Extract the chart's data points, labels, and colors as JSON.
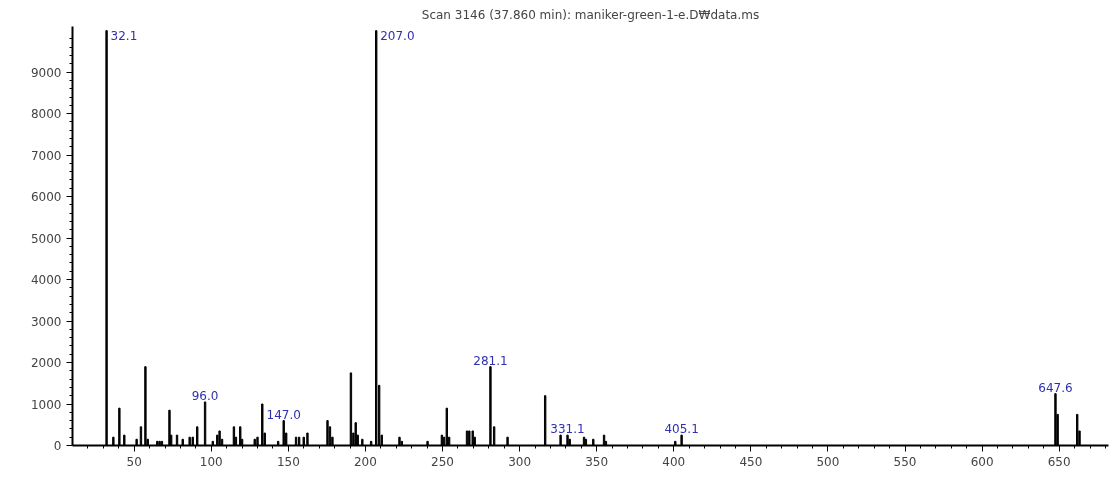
{
  "chart_data": {
    "type": "bar",
    "title": "Scan 3146 (37.860 min): maniker-green-1-e.D₩data.ms",
    "x": [
      32.1,
      36.5,
      40.4,
      43.6,
      51.6,
      54.4,
      57.3,
      58.8,
      65,
      66.5,
      68,
      72.9,
      74,
      77.8,
      81.5,
      86,
      88,
      90.9,
      96.0,
      101,
      103.9,
      105.4,
      107,
      114.7,
      116,
      118.8,
      120,
      128.2,
      130,
      133.1,
      134.7,
      143.4,
      147.0,
      148.6,
      155,
      157,
      160,
      162.4,
      175.4,
      177,
      178.6,
      190.6,
      192.2,
      193.7,
      195,
      198,
      203.7,
      207.0,
      208.9,
      210.6,
      222.1,
      223.6,
      240.3,
      249.6,
      251,
      252.8,
      254.3,
      265.9,
      267.4,
      269.6,
      270.9,
      281.1,
      283.5,
      292.2,
      316.6,
      326.6,
      331.1,
      332.5,
      341.8,
      343,
      347.8,
      354.8,
      356,
      401,
      405.1,
      647.6,
      649,
      661.7,
      663.2
    ],
    "values": [
      10000,
      200,
      900,
      250,
      150,
      450,
      1900,
      150,
      100,
      100,
      100,
      850,
      250,
      250,
      150,
      200,
      200,
      450,
      1050,
      100,
      250,
      350,
      150,
      450,
      200,
      450,
      150,
      150,
      200,
      1000,
      300,
      100,
      600,
      300,
      200,
      200,
      200,
      300,
      600,
      450,
      200,
      1750,
      300,
      550,
      250,
      150,
      100,
      10000,
      1450,
      250,
      200,
      100,
      100,
      250,
      200,
      900,
      200,
      350,
      350,
      350,
      200,
      1900,
      450,
      200,
      1200,
      250,
      250,
      150,
      200,
      150,
      150,
      250,
      100,
      100,
      250,
      1250,
      750,
      750,
      350
    ],
    "color": "#000000",
    "xlim": [
      10,
      682
    ],
    "ylim": [
      0,
      10100
    ],
    "xticks": [
      {
        "value": 20,
        "label": null
      },
      {
        "value": 30,
        "label": null
      },
      {
        "value": 40,
        "label": null
      },
      50,
      {
        "value": 60,
        "label": null
      },
      {
        "value": 70,
        "label": null
      },
      {
        "value": 80,
        "label": null
      },
      {
        "value": 90,
        "label": null
      },
      100,
      {
        "value": 110,
        "label": null
      },
      {
        "value": 120,
        "label": null
      },
      {
        "value": 130,
        "label": null
      },
      {
        "value": 140,
        "label": null
      },
      150,
      {
        "value": 160,
        "label": null
      },
      {
        "value": 170,
        "label": null
      },
      {
        "value": 180,
        "label": null
      },
      {
        "value": 190,
        "label": null
      },
      200,
      {
        "value": 210,
        "label": null
      },
      {
        "value": 220,
        "label": null
      },
      {
        "value": 230,
        "label": null
      },
      {
        "value": 240,
        "label": null
      },
      250,
      {
        "value": 260,
        "label": null
      },
      {
        "value": 270,
        "label": null
      },
      {
        "value": 280,
        "label": null
      },
      {
        "value": 290,
        "label": null
      },
      300,
      {
        "value": 310,
        "label": null
      },
      {
        "value": 320,
        "label": null
      },
      {
        "value": 330,
        "label": null
      },
      {
        "value": 340,
        "label": null
      },
      350,
      {
        "value": 360,
        "label": null
      },
      {
        "value": 370,
        "label": null
      },
      {
        "value": 380,
        "label": null
      },
      {
        "value": 390,
        "label": null
      },
      400,
      {
        "value": 410,
        "label": null
      },
      {
        "value": 420,
        "label": null
      },
      {
        "value": 430,
        "label": null
      },
      {
        "value": 440,
        "label": null
      },
      450,
      {
        "value": 460,
        "label": null
      },
      {
        "value": 470,
        "label": null
      },
      {
        "value": 480,
        "label": null
      },
      {
        "value": 490,
        "label": null
      },
      500,
      {
        "value": 510,
        "label": null
      },
      {
        "value": 520,
        "label": null
      },
      {
        "value": 530,
        "label": null
      },
      {
        "value": 540,
        "label": null
      },
      550,
      {
        "value": 560,
        "label": null
      },
      {
        "value": 570,
        "label": null
      },
      {
        "value": 580,
        "label": null
      },
      {
        "value": 590,
        "label": null
      },
      600,
      {
        "value": 610,
        "label": null
      },
      {
        "value": 620,
        "label": null
      },
      {
        "value": 630,
        "label": null
      },
      {
        "value": 640,
        "label": null
      },
      650,
      {
        "value": 660,
        "label": null
      },
      {
        "value": 670,
        "label": null
      },
      {
        "value": 680,
        "label": null
      }
    ],
    "yticks": [
      0,
      {
        "value": 200,
        "label": null
      },
      {
        "value": 400,
        "label": null
      },
      {
        "value": 600,
        "label": null
      },
      {
        "value": 800,
        "label": null
      },
      1000,
      {
        "value": 1200,
        "label": null
      },
      {
        "value": 1400,
        "label": null
      },
      {
        "value": 1600,
        "label": null
      },
      {
        "value": 1800,
        "label": null
      },
      2000,
      {
        "value": 2200,
        "label": null
      },
      {
        "value": 2400,
        "label": null
      },
      {
        "value": 2600,
        "label": null
      },
      {
        "value": 2800,
        "label": null
      },
      3000,
      {
        "value": 3200,
        "label": null
      },
      {
        "value": 3400,
        "label": null
      },
      {
        "value": 3600,
        "label": null
      },
      {
        "value": 3800,
        "label": null
      },
      4000,
      {
        "value": 4200,
        "label": null
      },
      {
        "value": 4400,
        "label": null
      },
      {
        "value": 4600,
        "label": null
      },
      {
        "value": 4800,
        "label": null
      },
      5000,
      {
        "value": 5200,
        "label": null
      },
      {
        "value": 5400,
        "label": null
      },
      {
        "value": 5600,
        "label": null
      },
      {
        "value": 5800,
        "label": null
      },
      6000,
      {
        "value": 6200,
        "label": null
      },
      {
        "value": 6400,
        "label": null
      },
      {
        "value": 6600,
        "label": null
      },
      {
        "value": 6800,
        "label": null
      },
      7000,
      {
        "value": 7200,
        "label": null
      },
      {
        "value": 7400,
        "label": null
      },
      {
        "value": 7600,
        "label": null
      },
      {
        "value": 7800,
        "label": null
      },
      8000,
      {
        "value": 8200,
        "label": null
      },
      {
        "value": 8400,
        "label": null
      },
      {
        "value": 8600,
        "label": null
      },
      {
        "value": 8800,
        "label": null
      },
      9000,
      {
        "value": 9200,
        "label": null
      },
      {
        "value": 9400,
        "label": null
      },
      {
        "value": 9600,
        "label": null
      },
      {
        "value": 9800,
        "label": null
      }
    ],
    "grid": false,
    "annotations": [
      {
        "text": "32.1",
        "x": 32.1,
        "y": 10000
      },
      {
        "text": "96.0",
        "x": 96.0,
        "y": 1050
      },
      {
        "text": "147.0",
        "x": 147.0,
        "y": 600
      },
      {
        "text": "207.0",
        "x": 207.0,
        "y": 10000
      },
      {
        "text": "281.1",
        "x": 281.1,
        "y": 1900
      },
      {
        "text": "331.1",
        "x": 331.1,
        "y": 250
      },
      {
        "text": "405.1",
        "x": 405.1,
        "y": 250
      },
      {
        "text": "647.6",
        "x": 647.6,
        "y": 1250
      }
    ]
  }
}
